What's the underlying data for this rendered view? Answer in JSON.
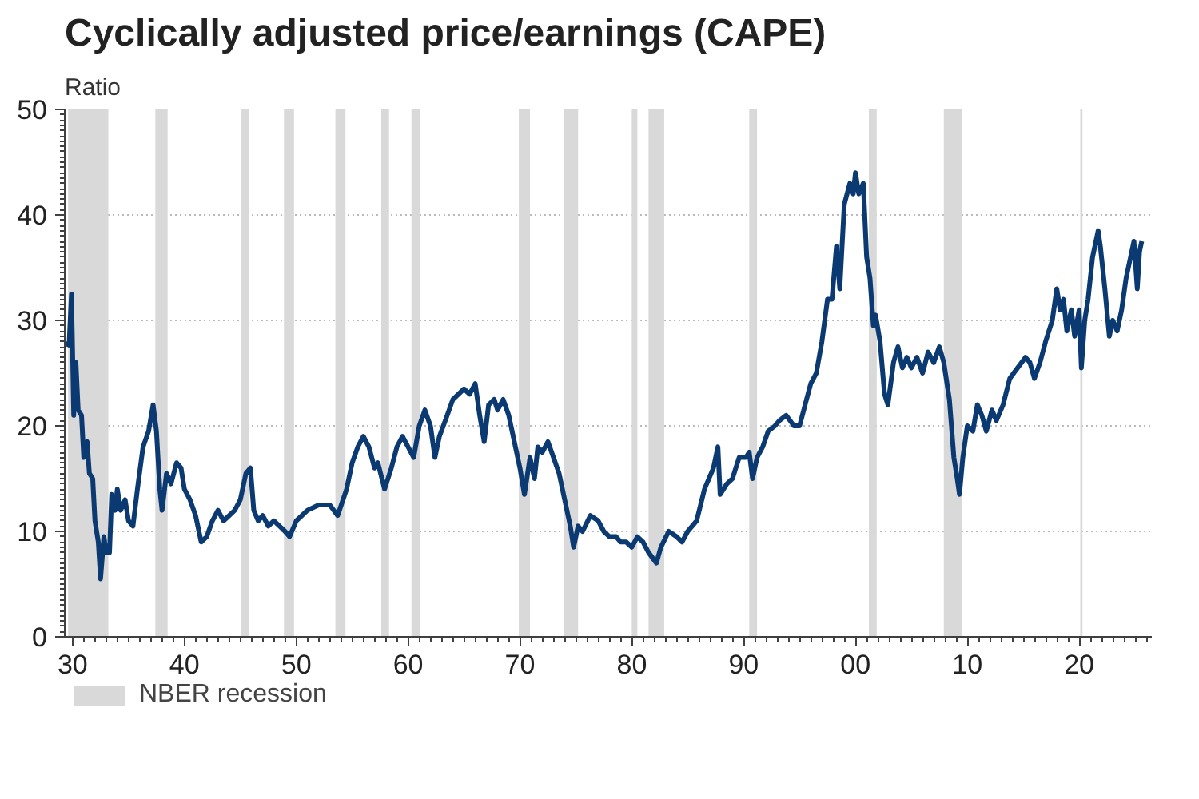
{
  "chart_data": {
    "type": "line",
    "title": "Cyclically adjusted price/earnings (CAPE)",
    "ylabel": "Ratio",
    "xlim": [
      1929.3,
      2026.5
    ],
    "ylim": [
      0,
      50
    ],
    "xticks": [
      {
        "value": 1930,
        "label": "30"
      },
      {
        "value": 1940,
        "label": "40"
      },
      {
        "value": 1950,
        "label": "50"
      },
      {
        "value": 1960,
        "label": "60"
      },
      {
        "value": 1970,
        "label": "70"
      },
      {
        "value": 1980,
        "label": "80"
      },
      {
        "value": 1990,
        "label": "90"
      },
      {
        "value": 2000,
        "label": "00"
      },
      {
        "value": 2010,
        "label": "10"
      },
      {
        "value": 2020,
        "label": "20"
      }
    ],
    "yticks": [
      0,
      10,
      20,
      30,
      40,
      50
    ],
    "grid": "y",
    "legend": "bottom",
    "line_style": "solid",
    "marker": "none",
    "bands": [
      {
        "axis": "x",
        "from": 1929.6,
        "to": 1933.2,
        "label": "NBER recession",
        "color": "#d9d9d9"
      },
      {
        "axis": "x",
        "from": 1937.4,
        "to": 1938.5,
        "color": "#d9d9d9"
      },
      {
        "axis": "x",
        "from": 1945.1,
        "to": 1945.8,
        "color": "#d9d9d9"
      },
      {
        "axis": "x",
        "from": 1948.9,
        "to": 1949.8,
        "color": "#d9d9d9"
      },
      {
        "axis": "x",
        "from": 1953.5,
        "to": 1954.4,
        "color": "#d9d9d9"
      },
      {
        "axis": "x",
        "from": 1957.6,
        "to": 1958.3,
        "color": "#d9d9d9"
      },
      {
        "axis": "x",
        "from": 1960.3,
        "to": 1961.1,
        "color": "#d9d9d9"
      },
      {
        "axis": "x",
        "from": 1969.9,
        "to": 1970.9,
        "color": "#d9d9d9"
      },
      {
        "axis": "x",
        "from": 1973.9,
        "to": 1975.2,
        "color": "#d9d9d9"
      },
      {
        "axis": "x",
        "from": 1980.0,
        "to": 1980.5,
        "color": "#d9d9d9"
      },
      {
        "axis": "x",
        "from": 1981.5,
        "to": 1982.9,
        "color": "#d9d9d9"
      },
      {
        "axis": "x",
        "from": 1990.5,
        "to": 1991.2,
        "color": "#d9d9d9"
      },
      {
        "axis": "x",
        "from": 2001.2,
        "to": 2001.9,
        "color": "#d9d9d9"
      },
      {
        "axis": "x",
        "from": 2007.9,
        "to": 2009.5,
        "color": "#d9d9d9"
      },
      {
        "axis": "x",
        "from": 2020.1,
        "to": 2020.3,
        "color": "#d9d9d9"
      }
    ],
    "series": [
      {
        "color": "#0b3a73",
        "x": [
          1929.5,
          1929.7,
          1929.9,
          1930.0,
          1930.1,
          1930.3,
          1930.5,
          1930.8,
          1931.0,
          1931.3,
          1931.5,
          1931.8,
          1932.0,
          1932.3,
          1932.5,
          1932.8,
          1933.0,
          1933.3,
          1933.5,
          1933.8,
          1934.0,
          1934.3,
          1934.7,
          1935.0,
          1935.4,
          1935.8,
          1936.3,
          1936.8,
          1937.2,
          1937.5,
          1937.8,
          1938.0,
          1938.4,
          1938.8,
          1939.3,
          1939.7,
          1940.0,
          1940.5,
          1941.0,
          1941.5,
          1942.0,
          1942.5,
          1943.0,
          1943.5,
          1944.0,
          1944.5,
          1945.0,
          1945.5,
          1945.9,
          1946.2,
          1946.6,
          1947.0,
          1947.5,
          1948.0,
          1948.5,
          1949.0,
          1949.4,
          1950.0,
          1950.5,
          1951.0,
          1952.0,
          1953.0,
          1953.7,
          1954.5,
          1955.0,
          1955.5,
          1956.0,
          1956.5,
          1957.0,
          1957.3,
          1957.9,
          1958.5,
          1959.0,
          1959.5,
          1960.0,
          1960.5,
          1961.0,
          1961.5,
          1962.0,
          1962.4,
          1962.8,
          1963.5,
          1964.0,
          1965.0,
          1965.5,
          1966.0,
          1966.4,
          1966.8,
          1967.2,
          1967.7,
          1968.0,
          1968.5,
          1969.0,
          1969.5,
          1970.0,
          1970.4,
          1970.9,
          1971.3,
          1971.6,
          1972.0,
          1972.5,
          1973.0,
          1973.5,
          1974.0,
          1974.5,
          1974.8,
          1975.2,
          1975.6,
          1976.3,
          1977.0,
          1977.5,
          1978.0,
          1978.6,
          1979.0,
          1979.5,
          1980.0,
          1980.5,
          1981.0,
          1981.5,
          1982.2,
          1982.6,
          1983.3,
          1984.0,
          1984.5,
          1985.0,
          1985.8,
          1986.5,
          1987.3,
          1987.7,
          1987.9,
          1988.5,
          1989.0,
          1989.6,
          1990.2,
          1990.5,
          1990.8,
          1991.2,
          1991.7,
          1992.2,
          1992.8,
          1993.2,
          1993.8,
          1994.5,
          1995.0,
          1995.5,
          1996.0,
          1996.5,
          1997.0,
          1997.5,
          1997.9,
          1998.3,
          1998.6,
          1999.0,
          1999.5,
          1999.8,
          2000.0,
          2000.3,
          2000.7,
          2001.0,
          2001.3,
          2001.6,
          2001.8,
          2002.2,
          2002.6,
          2002.9,
          2003.4,
          2003.8,
          2004.2,
          2004.6,
          2005.0,
          2005.5,
          2006.0,
          2006.5,
          2007.0,
          2007.5,
          2007.9,
          2008.4,
          2008.8,
          2009.1,
          2009.3,
          2009.6,
          2010.0,
          2010.5,
          2010.9,
          2011.3,
          2011.7,
          2012.2,
          2012.6,
          2013.2,
          2013.8,
          2014.5,
          2015.2,
          2015.6,
          2016.0,
          2016.5,
          2017.0,
          2017.6,
          2018.0,
          2018.3,
          2018.6,
          2018.9,
          2019.3,
          2019.6,
          2020.0,
          2020.2,
          2020.5,
          2020.8,
          2021.2,
          2021.7,
          2021.9,
          2022.3,
          2022.7,
          2023.0,
          2023.4,
          2023.8,
          2024.2,
          2024.6,
          2024.9,
          2025.2,
          2025.4,
          2025.6
        ],
        "values": [
          27.5,
          28,
          32.5,
          27,
          21,
          26,
          21.5,
          21,
          17,
          18.5,
          15.5,
          15,
          11,
          9,
          5.5,
          9.5,
          8,
          8,
          13.5,
          12,
          14,
          12,
          13,
          11,
          10.5,
          14,
          18,
          19.5,
          22,
          19.5,
          14,
          12,
          15.5,
          14.5,
          16.5,
          16,
          14,
          13,
          11.5,
          9,
          9.5,
          11,
          12,
          11,
          11.5,
          12,
          13,
          15.5,
          16,
          12,
          11,
          11.5,
          10.5,
          11,
          10.5,
          10,
          9.5,
          11,
          11.5,
          12,
          12.5,
          12.5,
          11.5,
          14,
          16.5,
          18,
          19,
          18,
          16,
          16.5,
          14,
          16,
          18,
          19,
          18,
          17,
          20,
          21.5,
          20,
          17,
          19,
          21,
          22.5,
          23.5,
          23,
          24,
          21,
          18.5,
          22,
          22.5,
          21.5,
          22.5,
          21,
          18.5,
          16,
          13.5,
          17,
          15,
          18,
          17.5,
          18.5,
          17,
          15.5,
          13,
          10.5,
          8.5,
          10.5,
          10,
          11.5,
          11,
          10,
          9.5,
          9.5,
          9,
          9,
          8.5,
          9.5,
          9,
          8,
          7,
          8.5,
          10,
          9.5,
          9,
          10,
          11,
          14,
          16,
          18,
          13.5,
          14.5,
          15,
          17,
          17,
          17.5,
          15,
          17,
          18,
          19.5,
          20,
          20.5,
          21,
          20,
          20,
          22,
          24,
          25,
          28,
          32,
          32,
          37,
          33,
          41,
          43,
          42,
          44,
          42,
          43,
          36,
          34,
          29.5,
          30.5,
          28,
          23,
          22,
          26,
          27.5,
          25.5,
          26.5,
          25.5,
          26.5,
          25,
          27,
          26,
          27.5,
          26,
          22.5,
          17,
          15,
          13.5,
          17,
          20,
          19.5,
          22,
          21,
          19.5,
          21.5,
          20.5,
          22,
          24.5,
          25.5,
          26.5,
          26,
          24.5,
          26,
          28,
          30,
          33,
          31,
          32,
          29,
          31,
          28.5,
          31,
          25.5,
          30,
          32,
          36,
          38.5,
          37,
          33,
          28.5,
          30,
          29,
          31,
          34,
          36,
          37.5,
          33,
          36.5,
          37.5
        ]
      }
    ]
  }
}
